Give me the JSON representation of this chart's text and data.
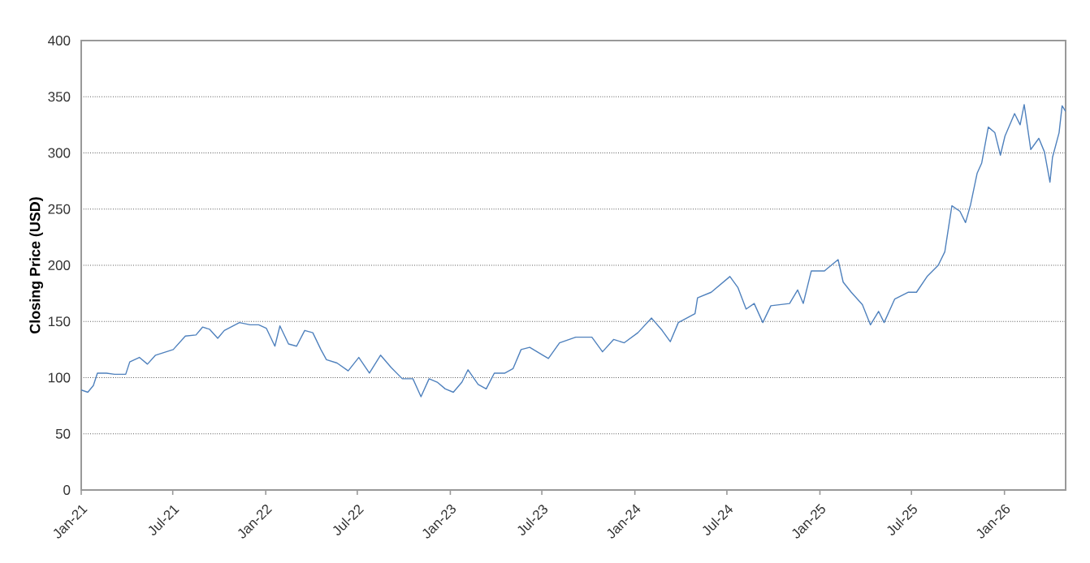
{
  "chart_data": {
    "type": "line",
    "ylabel": "**Closing Price (USD)**",
    "ylim": [
      0,
      400
    ],
    "yticks": [
      0,
      50,
      100,
      150,
      200,
      250,
      300,
      350,
      400
    ],
    "xlim": [
      "2021-01-01",
      "2026-05-02"
    ],
    "xticks": [
      {
        "value": "2021-01-01",
        "label": "Jan-21"
      },
      {
        "value": "2021-07-01",
        "label": "Jul-21"
      },
      {
        "value": "2022-01-01",
        "label": "Jan-22"
      },
      {
        "value": "2022-07-01",
        "label": "Jul-22"
      },
      {
        "value": "2023-01-01",
        "label": "Jan-23"
      },
      {
        "value": "2023-07-01",
        "label": "Jul-23"
      },
      {
        "value": "2024-01-01",
        "label": "Jan-24"
      },
      {
        "value": "2024-07-01",
        "label": "Jul-24"
      },
      {
        "value": "2025-01-01",
        "label": "Jan-25"
      },
      {
        "value": "2025-07-01",
        "label": "Jul-25"
      },
      {
        "value": "2026-01-01",
        "label": "Jan-26"
      }
    ],
    "grid": "y",
    "marker": "none",
    "line_style": "solid",
    "x": [
      "2021-01-01",
      "2021-01-14",
      "2021-01-25",
      "2021-02-02",
      "2021-02-20",
      "2021-03-08",
      "2021-03-30",
      "2021-04-07",
      "2021-04-26",
      "2021-05-12",
      "2021-05-28",
      "2021-07-02",
      "2021-07-26",
      "2021-08-16",
      "2021-08-29",
      "2021-09-12",
      "2021-09-28",
      "2021-10-11",
      "2021-11-10",
      "2021-12-01",
      "2021-12-18",
      "2022-01-02",
      "2022-01-19",
      "2022-01-29",
      "2022-02-15",
      "2022-03-03",
      "2022-03-19",
      "2022-04-04",
      "2022-04-20",
      "2022-05-01",
      "2022-05-22",
      "2022-06-13",
      "2022-07-04",
      "2022-07-25",
      "2022-08-16",
      "2022-09-06",
      "2022-09-28",
      "2022-10-19",
      "2022-11-04",
      "2022-11-20",
      "2022-12-06",
      "2022-12-22",
      "2023-01-07",
      "2023-01-24",
      "2023-02-05",
      "2023-02-25",
      "2023-03-13",
      "2023-03-29",
      "2023-04-19",
      "2023-05-05",
      "2023-05-21",
      "2023-06-07",
      "2023-07-03",
      "2023-07-14",
      "2023-08-05",
      "2023-09-06",
      "2023-10-08",
      "2023-10-29",
      "2023-11-20",
      "2023-12-11",
      "2024-01-07",
      "2024-02-03",
      "2024-02-24",
      "2024-03-11",
      "2024-03-27",
      "2024-04-29",
      "2024-05-04",
      "2024-05-31",
      "2024-07-07",
      "2024-07-23",
      "2024-08-08",
      "2024-08-24",
      "2024-09-10",
      "2024-09-26",
      "2024-11-02",
      "2024-11-18",
      "2024-11-29",
      "2024-12-15",
      "2025-01-10",
      "2025-02-06",
      "2025-02-16",
      "2025-03-04",
      "2025-03-26",
      "2025-04-11",
      "2025-04-27",
      "2025-05-08",
      "2025-05-29",
      "2025-06-25",
      "2025-07-11",
      "2025-08-01",
      "2025-08-23",
      "2025-09-05",
      "2025-09-19",
      "2025-10-05",
      "2025-10-16",
      "2025-10-26",
      "2025-11-08",
      "2025-11-17",
      "2025-11-30",
      "2025-12-13",
      "2025-12-24",
      "2026-01-02",
      "2026-01-21",
      "2026-02-01",
      "2026-02-09",
      "2026-02-22",
      "2026-03-10",
      "2026-03-21",
      "2026-04-01",
      "2026-04-06",
      "2026-04-19",
      "2026-04-25",
      "2026-05-02"
    ],
    "series": [
      {
        "color": "#4f81bd",
        "values": [
          89,
          87,
          93,
          104,
          104,
          103,
          103,
          114,
          118,
          112,
          120,
          125,
          137,
          138,
          145,
          143,
          135,
          142,
          149,
          147,
          147,
          144,
          128,
          146,
          130,
          128,
          142,
          140,
          125,
          116,
          113,
          106,
          118,
          104,
          120,
          109,
          99,
          99,
          83,
          99,
          96,
          90,
          87,
          96,
          107,
          94,
          90,
          104,
          104,
          108,
          125,
          127,
          120,
          117,
          131,
          136,
          136,
          123,
          134,
          131,
          140,
          153,
          142,
          132,
          149,
          157,
          171,
          176,
          190,
          180,
          161,
          166,
          149,
          164,
          166,
          178,
          166,
          195,
          195,
          205,
          185,
          176,
          165,
          147,
          159,
          149,
          170,
          176,
          176,
          190,
          200,
          212,
          253,
          248,
          238,
          254,
          282,
          291,
          323,
          318,
          298,
          315,
          335,
          325,
          343,
          303,
          313,
          301,
          274,
          296,
          318,
          342,
          337
        ]
      }
    ]
  }
}
